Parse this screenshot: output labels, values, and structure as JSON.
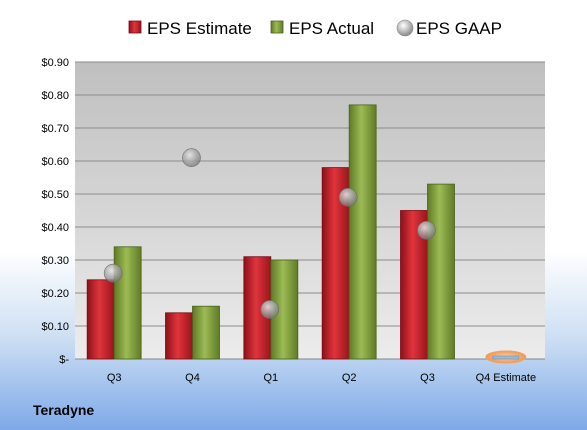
{
  "company_name": "Teradyne",
  "chart_data": {
    "type": "bar",
    "categories": [
      "Q3",
      "Q4",
      "Q1",
      "Q2",
      "Q3",
      "Q4 Estimate"
    ],
    "series": [
      {
        "name": "EPS Estimate",
        "color": "#c0202a",
        "values": [
          0.24,
          0.14,
          0.31,
          0.58,
          0.45,
          0.0
        ]
      },
      {
        "name": "EPS Actual",
        "color": "#7f9e3a",
        "values": [
          0.34,
          0.16,
          0.3,
          0.77,
          0.53,
          null
        ]
      },
      {
        "name": "EPS GAAP",
        "color": "#9a9a9a",
        "marker": "circle",
        "values": [
          0.26,
          0.61,
          0.15,
          0.49,
          0.39,
          null
        ]
      }
    ],
    "yticks": [
      "$-",
      "$0.10",
      "$0.20",
      "$0.30",
      "$0.40",
      "$0.50",
      "$0.60",
      "$0.70",
      "$0.80",
      "$0.90"
    ],
    "ylim": [
      0,
      0.9
    ],
    "legend": "top",
    "grid": true,
    "estimate_marker_color": "#f0a060"
  }
}
